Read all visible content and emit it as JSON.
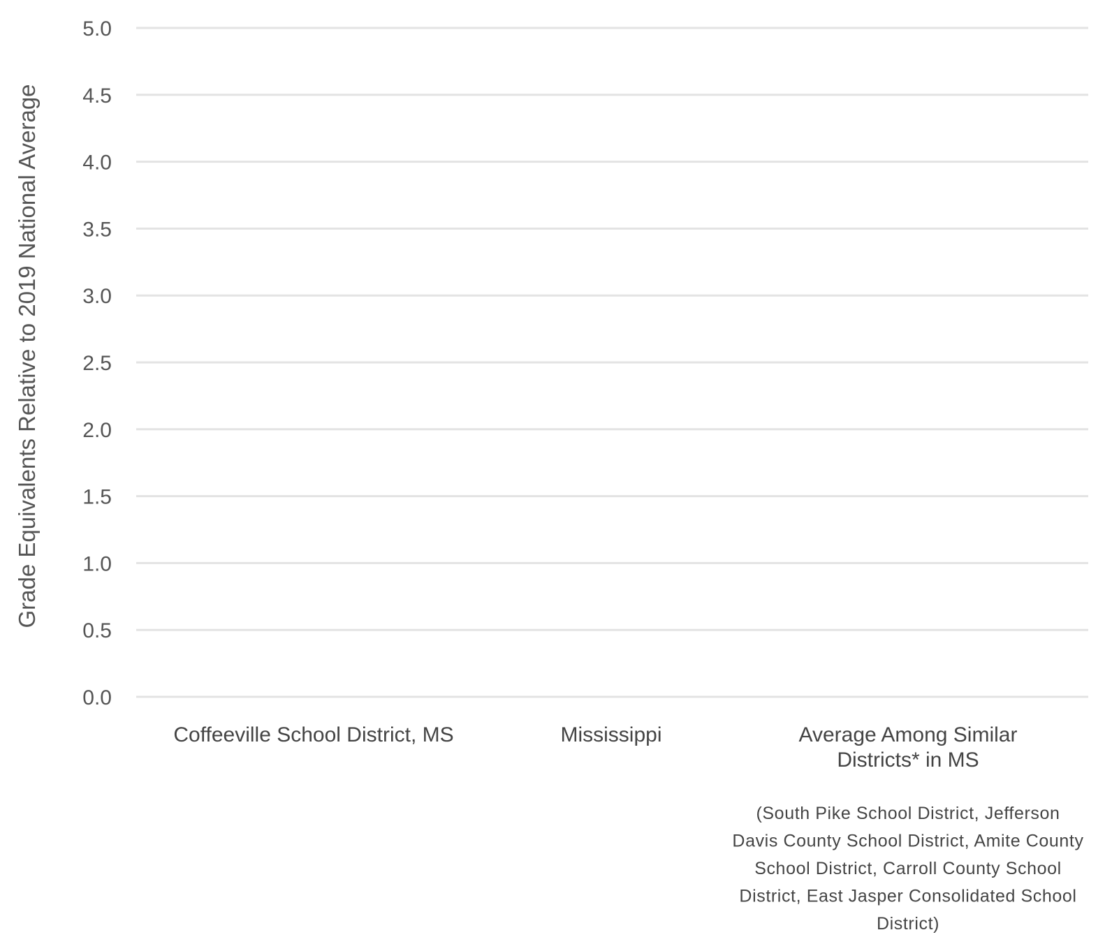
{
  "chart_data": {
    "type": "bar",
    "title": "",
    "xlabel": "",
    "ylabel": "Grade Equivalents Relative to 2019 National Average",
    "ylim": [
      0,
      5
    ],
    "yticks": [
      "0.0",
      "0.5",
      "1.0",
      "1.5",
      "2.0",
      "2.5",
      "3.0",
      "3.5",
      "4.0",
      "4.5",
      "5.0"
    ],
    "grid": true,
    "categories": [
      "Coffeeville School District, MS",
      "Mississippi",
      "Average Among Similar Districts* in MS"
    ],
    "category_lines": [
      [
        "Coffeeville School District, MS"
      ],
      [
        "Mississippi"
      ],
      [
        "Average Among Similar",
        "Districts* in MS"
      ]
    ],
    "annotation_lines": [
      "(South Pike School District, Jefferson",
      "Davis County School District, Amite County",
      "School District, Carroll County School",
      "District, East Jasper Consolidated School",
      "District)"
    ]
  }
}
